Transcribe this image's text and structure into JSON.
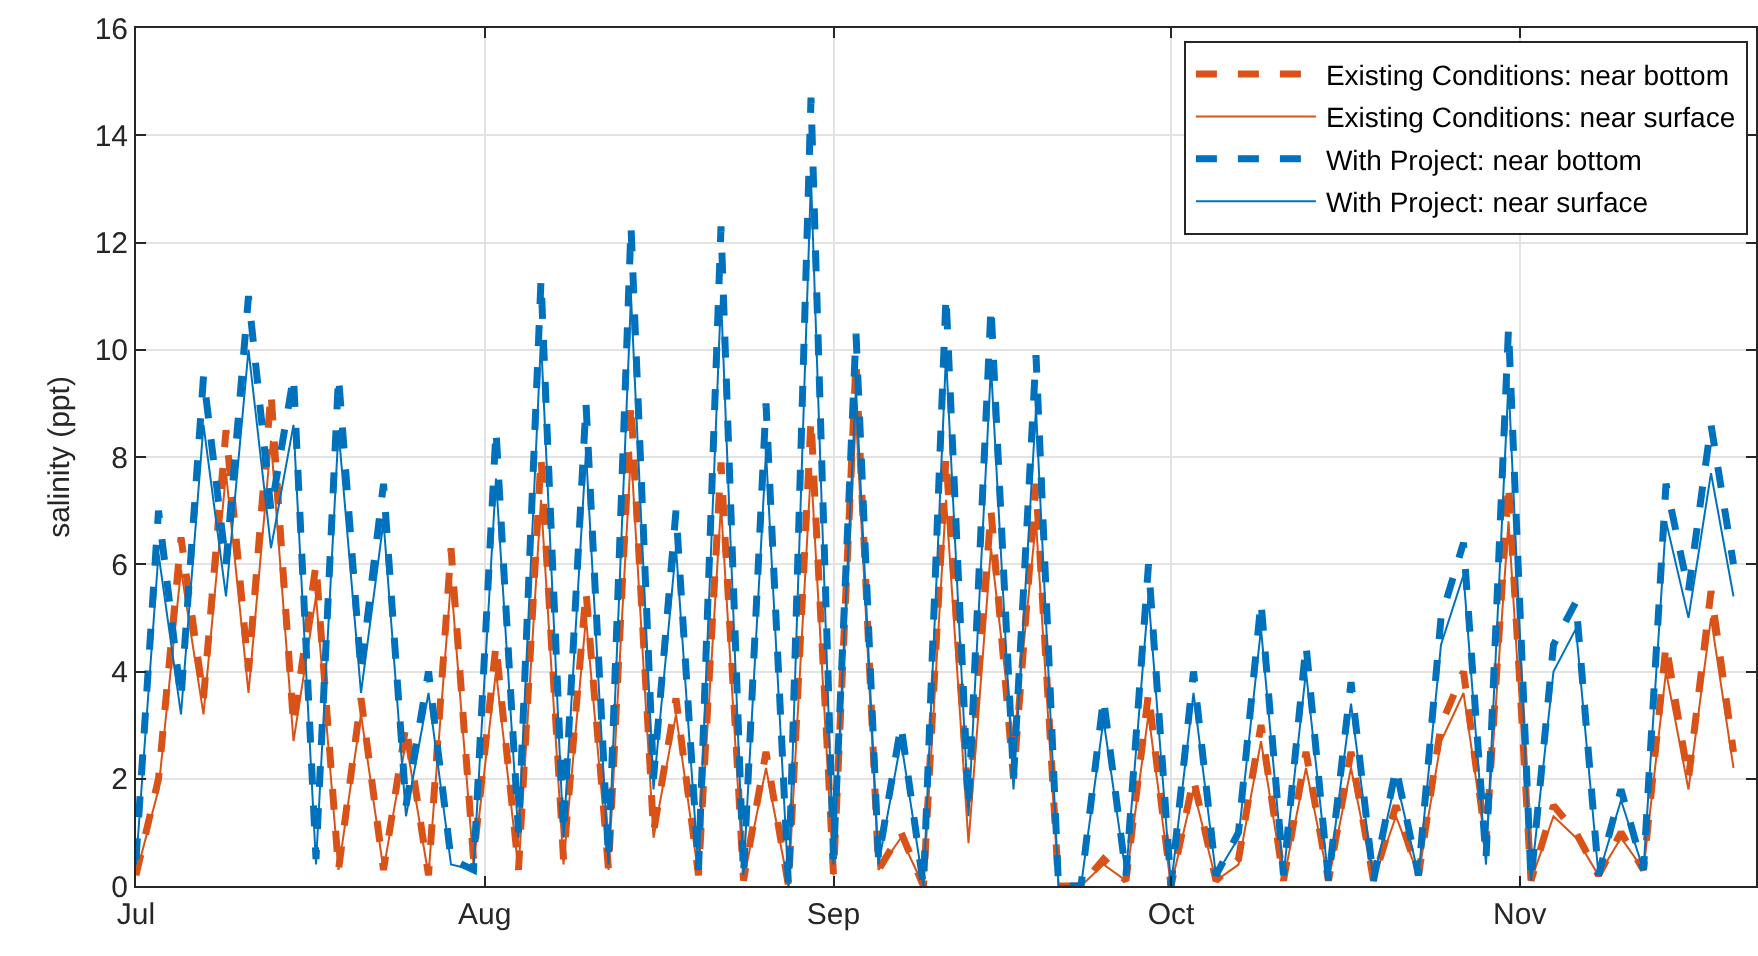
{
  "chart_data": {
    "type": "line",
    "ylabel": "salinity (ppt)",
    "x": [
      "--07-01",
      "--07-03",
      "--07-05",
      "--07-07",
      "--07-09",
      "--07-11",
      "--07-13",
      "--07-15",
      "--07-17",
      "--07-19",
      "--07-21",
      "--07-23",
      "--07-25",
      "--07-27",
      "--07-29",
      "--07-31",
      "--08-02",
      "--08-04",
      "--08-06",
      "--08-08",
      "--08-10",
      "--08-12",
      "--08-14",
      "--08-16",
      "--08-18",
      "--08-20",
      "--08-22",
      "--08-24",
      "--08-26",
      "--08-28",
      "--08-30",
      "--09-01",
      "--09-03",
      "--09-05",
      "--09-07",
      "--09-09",
      "--09-11",
      "--09-13",
      "--09-15",
      "--09-17",
      "--09-19",
      "--09-21",
      "--09-23",
      "--09-25",
      "--09-27",
      "--09-29",
      "--10-01",
      "--10-03",
      "--10-05",
      "--10-07",
      "--10-09",
      "--10-11",
      "--10-13",
      "--10-15",
      "--10-17",
      "--10-19",
      "--10-21",
      "--10-23",
      "--10-25",
      "--10-27",
      "--10-29",
      "--10-31",
      "--11-02",
      "--11-04",
      "--11-06",
      "--11-08",
      "--11-10",
      "--11-12",
      "--11-14",
      "--11-16",
      "--11-18",
      "--11-20"
    ],
    "series": [
      {
        "name": "Existing Conditions: near bottom",
        "color": "#d95319",
        "line_style": "dashed",
        "values": [
          0.2,
          2,
          6.5,
          3.5,
          8.5,
          4,
          9.2,
          3,
          6,
          0.3,
          3.5,
          0.3,
          3,
          0.2,
          6.3,
          0.5,
          4.5,
          0.3,
          8,
          0.5,
          5.5,
          0.3,
          9,
          1,
          3.5,
          0.2,
          7.9,
          0.1,
          2.5,
          0,
          8.7,
          0.2,
          9.8,
          0.3,
          1,
          0,
          8,
          1.5,
          7,
          2,
          7.5,
          0,
          0,
          0.5,
          0.1,
          3.6,
          0,
          2,
          0.1,
          0.5,
          3,
          0.1,
          2.5,
          0.1,
          2.5,
          0.1,
          1.5,
          0.2,
          3,
          4,
          0.8,
          7.5,
          0.1,
          1.5,
          1,
          0.2,
          1,
          0.3,
          4.5,
          2,
          5.5,
          2.5
        ]
      },
      {
        "name": "Existing Conditions: near surface",
        "color": "#d95319",
        "line_style": "solid",
        "values": [
          0.2,
          1.8,
          5.9,
          3.2,
          7.7,
          3.6,
          8.3,
          2.7,
          5.4,
          0.3,
          3.2,
          0.3,
          2.7,
          0.2,
          5.7,
          0.4,
          4,
          0.3,
          7.2,
          0.4,
          5,
          0.3,
          8.1,
          0.9,
          3.2,
          0.2,
          7.1,
          0.1,
          2.2,
          0,
          7.8,
          0.2,
          8.8,
          0.3,
          0.9,
          0,
          7.2,
          0.8,
          6.3,
          2.6,
          6.8,
          0,
          0,
          0.4,
          0.1,
          3.2,
          0,
          1.8,
          0.1,
          0.4,
          2.7,
          0.1,
          2.2,
          0.1,
          2.2,
          0.1,
          1.3,
          0.2,
          2.7,
          3.6,
          0.7,
          6.8,
          0.1,
          1.3,
          0.9,
          0.2,
          0.9,
          0.3,
          4,
          1.8,
          5,
          2.2
        ]
      },
      {
        "name": "With Project: near bottom",
        "color": "#0072bd",
        "line_style": "dashed",
        "values": [
          0.5,
          7,
          3.5,
          9.5,
          6,
          11,
          7,
          9.5,
          0.5,
          9.5,
          4,
          7.5,
          1.5,
          4,
          0.5,
          0.3,
          8.5,
          1,
          11.3,
          1,
          9,
          0.5,
          12.3,
          2,
          7,
          0.3,
          12.3,
          0.2,
          9,
          0,
          14.7,
          0.5,
          10.3,
          0.5,
          3,
          0,
          11,
          1.5,
          10.8,
          2,
          9.9,
          0,
          0,
          3.5,
          0.2,
          6,
          0,
          4,
          0.2,
          1,
          5.3,
          0.2,
          4.5,
          0.1,
          3.8,
          0.1,
          2.2,
          0.2,
          5,
          6.4,
          0.5,
          10.4,
          0.1,
          4.5,
          5.3,
          0.2,
          1.8,
          0.3,
          7.5,
          5.5,
          8.6,
          6
        ]
      },
      {
        "name": "With Project: near surface",
        "color": "#0072bd",
        "line_style": "solid",
        "values": [
          0.4,
          6.2,
          3.2,
          8.6,
          5.4,
          10,
          6.3,
          8.6,
          0.4,
          8.5,
          3.6,
          6.8,
          1.3,
          3.6,
          0.4,
          0.3,
          7.6,
          0.9,
          10.2,
          0.9,
          8.1,
          0.4,
          11,
          1.8,
          6.3,
          0.3,
          11,
          0.2,
          8.1,
          0,
          13.2,
          0.4,
          9.3,
          0.4,
          2.7,
          0,
          9.9,
          1.3,
          9.7,
          1.8,
          8.9,
          0,
          0,
          3.1,
          0.2,
          5.4,
          0,
          3.6,
          0.2,
          0.9,
          4.8,
          0.2,
          4,
          0.1,
          3.4,
          0.1,
          2,
          0.2,
          4.5,
          5.8,
          0.4,
          9.4,
          0.1,
          4,
          4.8,
          0.2,
          1.6,
          0.3,
          6.8,
          5,
          7.7,
          5.4
        ]
      }
    ],
    "xlim": [
      "--07-01",
      "--11-22"
    ],
    "xticks": [
      {
        "value": "--07-01",
        "label": "Jul"
      },
      {
        "value": "--08-01",
        "label": "Aug"
      },
      {
        "value": "--09-01",
        "label": "Sep"
      },
      {
        "value": "--10-01",
        "label": "Oct"
      },
      {
        "value": "--11-01",
        "label": "Nov"
      }
    ],
    "ylim": [
      0,
      16
    ],
    "yticks": [
      0,
      2,
      4,
      6,
      8,
      10,
      12,
      14,
      16
    ],
    "grid": true,
    "legend": "top right",
    "marker": "none"
  }
}
